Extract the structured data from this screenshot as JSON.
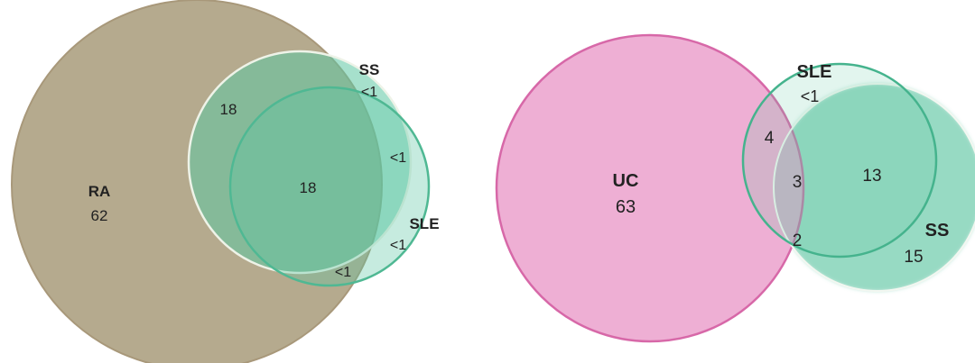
{
  "left_diagram": {
    "sets": [
      {
        "name": "RA",
        "value": "62",
        "color": "#b3a68a"
      },
      {
        "name": "SS",
        "value": "<1",
        "color": "#5bc4a0"
      },
      {
        "name": "SLE",
        "value": "<1",
        "color": "#5bc4a0"
      }
    ],
    "regions": {
      "ra_ss": "18",
      "ra_ss_sle": "18",
      "ss_sle": "<1",
      "ra_sle": "<1"
    }
  },
  "right_diagram": {
    "sets": [
      {
        "name": "UC",
        "value": "63",
        "color": "#ec9ccc"
      },
      {
        "name": "SLE",
        "value": "<1",
        "color": "#5bc4a0"
      },
      {
        "name": "SS",
        "value": "15",
        "color": "#5bc4a0"
      }
    ],
    "regions": {
      "uc_sle": "4",
      "uc_sle_ss": "3",
      "sle_ss": "13",
      "uc_ss": "2"
    }
  }
}
